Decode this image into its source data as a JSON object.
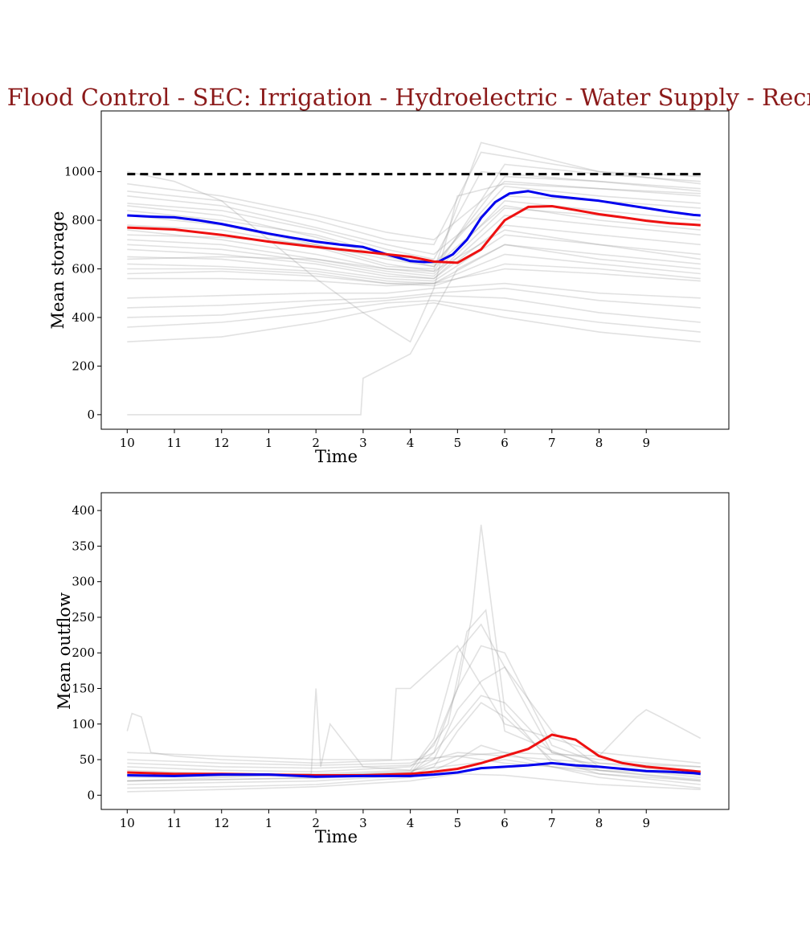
{
  "figure": {
    "title": "MAIN: Flood Control - SEC: Irrigation - Hydroelectric - Water Supply - Recreation",
    "title_color": "#8b1a1a"
  },
  "colors": {
    "background_traces": "#9a9a9a",
    "blue_series": "#0000ee",
    "red_series": "#ee1111",
    "capacity_line": "#000000"
  },
  "chart_data": [
    {
      "type": "line",
      "xlabel": "Time",
      "ylabel": "Mean storage",
      "categories": [
        "10",
        "11",
        "12",
        "1",
        "2",
        "3",
        "4",
        "5",
        "6",
        "7",
        "8",
        "9"
      ],
      "xlim": [
        -0.55,
        12.75
      ],
      "ylim": [
        -60,
        1250
      ],
      "yticks": [
        0,
        200,
        400,
        600,
        800,
        1000
      ],
      "capacity": {
        "value": 990,
        "x": [
          0,
          12.15
        ]
      },
      "series": [
        {
          "role": "blue",
          "x": [
            0,
            0.5,
            1,
            1.5,
            2,
            2.5,
            3,
            3.5,
            4,
            4.5,
            5,
            5.5,
            6,
            6.3,
            6.6,
            6.9,
            7.2,
            7.5,
            7.8,
            8.1,
            8.5,
            9,
            9.5,
            10,
            10.5,
            11,
            11.5,
            12,
            12.15
          ],
          "y": [
            820,
            815,
            812,
            800,
            785,
            765,
            745,
            728,
            712,
            700,
            690,
            660,
            632,
            628,
            630,
            660,
            720,
            810,
            875,
            910,
            920,
            900,
            890,
            880,
            865,
            850,
            835,
            822,
            820
          ]
        },
        {
          "role": "red",
          "x": [
            0,
            1,
            2,
            3,
            4,
            5,
            6,
            6.5,
            7,
            7.5,
            8,
            8.5,
            9,
            9.5,
            10,
            10.5,
            11,
            11.5,
            12,
            12.15
          ],
          "y": [
            770,
            762,
            740,
            712,
            690,
            670,
            650,
            630,
            625,
            680,
            800,
            855,
            858,
            842,
            825,
            812,
            798,
            788,
            782,
            780
          ]
        }
      ],
      "background_traces": [
        {
          "x": [
            0,
            2,
            4,
            5.5,
            6.5,
            8,
            10,
            12.15
          ],
          "y": [
            950,
            900,
            820,
            750,
            720,
            960,
            930,
            910
          ]
        },
        {
          "x": [
            0,
            2,
            4,
            5.5,
            6.5,
            8,
            10,
            12.15
          ],
          "y": [
            900,
            860,
            770,
            700,
            660,
            900,
            880,
            850
          ]
        },
        {
          "x": [
            0,
            2,
            4,
            5.5,
            6.5,
            8,
            10,
            12.15
          ],
          "y": [
            860,
            820,
            730,
            650,
            610,
            980,
            960,
            930
          ]
        },
        {
          "x": [
            0,
            2,
            4,
            5.5,
            6.5,
            8,
            10,
            12.15
          ],
          "y": [
            820,
            780,
            700,
            620,
            590,
            1030,
            990,
            960
          ]
        },
        {
          "x": [
            0,
            2,
            4,
            5.5,
            6.5,
            7.5,
            10,
            12.15
          ],
          "y": [
            780,
            760,
            690,
            610,
            600,
            1120,
            1000,
            980
          ]
        },
        {
          "x": [
            0,
            2,
            4,
            5.5,
            6.5,
            8,
            10,
            12.15
          ],
          "y": [
            760,
            720,
            660,
            600,
            580,
            880,
            840,
            800
          ]
        },
        {
          "x": [
            0,
            2,
            4,
            5.5,
            6.5,
            8,
            10,
            12.15
          ],
          "y": [
            720,
            700,
            640,
            590,
            570,
            850,
            820,
            780
          ]
        },
        {
          "x": [
            0,
            2,
            4,
            5.5,
            6.5,
            8,
            10,
            12.15
          ],
          "y": [
            700,
            680,
            630,
            580,
            560,
            820,
            780,
            740
          ]
        },
        {
          "x": [
            0,
            2,
            4,
            5.5,
            6.5,
            8,
            10,
            12.15
          ],
          "y": [
            680,
            660,
            620,
            570,
            560,
            780,
            740,
            700
          ]
        },
        {
          "x": [
            0,
            2,
            4,
            5.5,
            6.5,
            8,
            10,
            12.15
          ],
          "y": [
            650,
            640,
            600,
            560,
            550,
            740,
            700,
            660
          ]
        },
        {
          "x": [
            0,
            2,
            4,
            5.5,
            6.5,
            8,
            10,
            12.15
          ],
          "y": [
            620,
            610,
            590,
            550,
            540,
            700,
            660,
            620
          ]
        },
        {
          "x": [
            0,
            2,
            4,
            5.5,
            6.5,
            8,
            10,
            12.15
          ],
          "y": [
            600,
            600,
            580,
            540,
            540,
            660,
            620,
            580
          ]
        },
        {
          "x": [
            0,
            2,
            4,
            5.5,
            6.5,
            8,
            10,
            12.15
          ],
          "y": [
            580,
            590,
            570,
            540,
            530,
            620,
            600,
            560
          ]
        },
        {
          "x": [
            0,
            2,
            4,
            5.5,
            6.5,
            8,
            10,
            12.15
          ],
          "y": [
            560,
            560,
            550,
            530,
            540,
            600,
            580,
            550
          ]
        },
        {
          "x": [
            0,
            2,
            4,
            5.5,
            6.5,
            8,
            10,
            12.15
          ],
          "y": [
            480,
            490,
            500,
            500,
            520,
            540,
            500,
            480
          ]
        },
        {
          "x": [
            0,
            2,
            4,
            5.5,
            6.5,
            8,
            10,
            12.15
          ],
          "y": [
            440,
            450,
            470,
            480,
            500,
            520,
            470,
            440
          ]
        },
        {
          "x": [
            0,
            2,
            4,
            5.5,
            6.5,
            8,
            10,
            12.15
          ],
          "y": [
            400,
            410,
            450,
            470,
            490,
            480,
            420,
            380
          ]
        },
        {
          "x": [
            0,
            2,
            4,
            5.5,
            6.5,
            8,
            10,
            12.15
          ],
          "y": [
            360,
            380,
            420,
            460,
            470,
            430,
            380,
            340
          ]
        },
        {
          "x": [
            0,
            2,
            4,
            5.5,
            6.5,
            8,
            10,
            12.15
          ],
          "y": [
            300,
            320,
            380,
            440,
            460,
            400,
            340,
            300
          ]
        },
        {
          "x": [
            0,
            1,
            2,
            3,
            4,
            5,
            6,
            6.5,
            7,
            8,
            10,
            12.15
          ],
          "y": [
            1000,
            960,
            880,
            720,
            560,
            420,
            300,
            520,
            900,
            950,
            930,
            900
          ]
        },
        {
          "x": [
            0,
            2,
            4,
            5.5,
            6.5,
            7.5,
            10,
            12.15
          ],
          "y": [
            920,
            880,
            800,
            720,
            700,
            1080,
            1000,
            950
          ]
        },
        {
          "x": [
            0,
            2,
            4,
            5.5,
            6.5,
            7.5,
            10,
            12.15
          ],
          "y": [
            870,
            840,
            760,
            680,
            640,
            1000,
            960,
            920
          ]
        },
        {
          "x": [
            0,
            2,
            4,
            5.5,
            6.5,
            8,
            10,
            12.15
          ],
          "y": [
            840,
            800,
            740,
            660,
            620,
            940,
            900,
            870
          ]
        },
        {
          "x": [
            0,
            2,
            4,
            5.5,
            6.5,
            8,
            10,
            12.15
          ],
          "y": [
            640,
            650,
            640,
            600,
            590,
            760,
            700,
            640
          ]
        },
        {
          "x": [
            0,
            2,
            4,
            5.5,
            6.5,
            8,
            10,
            12.15
          ],
          "y": [
            740,
            730,
            700,
            640,
            610,
            860,
            800,
            760
          ]
        },
        {
          "x": [
            0,
            4.95,
            5,
            6,
            7,
            8,
            10,
            12.15
          ],
          "y": [
            0,
            0,
            150,
            250,
            600,
            700,
            640,
            600
          ]
        }
      ]
    },
    {
      "type": "line",
      "xlabel": "Time",
      "ylabel": "Mean outflow",
      "categories": [
        "10",
        "11",
        "12",
        "1",
        "2",
        "3",
        "4",
        "5",
        "6",
        "7",
        "8",
        "9"
      ],
      "xlim": [
        -0.55,
        12.75
      ],
      "ylim": [
        -20,
        425
      ],
      "yticks": [
        0,
        50,
        100,
        150,
        200,
        250,
        300,
        350,
        400
      ],
      "series": [
        {
          "role": "red",
          "x": [
            0,
            1,
            2,
            3,
            4,
            5,
            6,
            6.5,
            7,
            7.5,
            8,
            8.5,
            9,
            9.5,
            10,
            10.5,
            11,
            11.5,
            12,
            12.15
          ],
          "y": [
            32,
            30,
            30,
            29,
            28,
            28,
            30,
            33,
            37,
            45,
            55,
            65,
            85,
            78,
            55,
            45,
            40,
            37,
            34,
            33
          ]
        },
        {
          "role": "blue",
          "x": [
            0,
            1,
            2,
            3,
            4,
            5,
            6,
            6.5,
            7,
            7.5,
            8,
            8.5,
            9,
            9.5,
            10,
            10.5,
            11,
            11.5,
            12,
            12.15
          ],
          "y": [
            28,
            27,
            29,
            29,
            26,
            27,
            27,
            29,
            32,
            38,
            40,
            42,
            45,
            42,
            40,
            37,
            34,
            33,
            31,
            30
          ]
        }
      ],
      "background_traces": [
        {
          "x": [
            0,
            2,
            4,
            6,
            6.5,
            7,
            7.3,
            7.5,
            8,
            9,
            10,
            12.15
          ],
          "y": [
            20,
            22,
            25,
            30,
            60,
            150,
            250,
            380,
            120,
            45,
            35,
            20
          ]
        },
        {
          "x": [
            0,
            2,
            4,
            6,
            6.5,
            7,
            7.5,
            8,
            9,
            10,
            12.15
          ],
          "y": [
            30,
            28,
            30,
            35,
            80,
            200,
            240,
            180,
            60,
            40,
            25
          ]
        },
        {
          "x": [
            0,
            2,
            4,
            6,
            6.5,
            7,
            7.5,
            8,
            9,
            10,
            12.15
          ],
          "y": [
            40,
            35,
            33,
            40,
            70,
            150,
            210,
            200,
            70,
            45,
            30
          ]
        },
        {
          "x": [
            0,
            2,
            4,
            6,
            6.5,
            7,
            7.5,
            8,
            9,
            10,
            12.15
          ],
          "y": [
            25,
            27,
            28,
            32,
            50,
            120,
            160,
            180,
            90,
            40,
            28
          ]
        },
        {
          "x": [
            0,
            2,
            4,
            6,
            6.5,
            7,
            7.5,
            8,
            9,
            10,
            12.15
          ],
          "y": [
            50,
            45,
            42,
            45,
            60,
            100,
            140,
            130,
            60,
            50,
            40
          ]
        },
        {
          "x": [
            0,
            2,
            4,
            5.6,
            5.7,
            6,
            6.5,
            7,
            8,
            10,
            12.15
          ],
          "y": [
            60,
            55,
            50,
            50,
            150,
            150,
            180,
            210,
            100,
            60,
            45
          ]
        },
        {
          "x": [
            0,
            0.1,
            0.3,
            0.5,
            1,
            2,
            4,
            6,
            8,
            10,
            10.8,
            11,
            11.3,
            12.15
          ],
          "y": [
            90,
            115,
            110,
            60,
            55,
            50,
            45,
            50,
            60,
            55,
            110,
            120,
            110,
            80
          ]
        },
        {
          "x": [
            0,
            2,
            3.9,
            4,
            4.1,
            4.3,
            5,
            6,
            8,
            10,
            12.15
          ],
          "y": [
            20,
            25,
            30,
            150,
            40,
            100,
            40,
            35,
            50,
            30,
            20
          ]
        },
        {
          "x": [
            0,
            2,
            4,
            6,
            6.5,
            7,
            7.5,
            8,
            9,
            10,
            12.15
          ],
          "y": [
            10,
            12,
            15,
            25,
            35,
            50,
            70,
            60,
            40,
            25,
            10
          ]
        },
        {
          "x": [
            0,
            2,
            4,
            6,
            6.5,
            7,
            7.5,
            8,
            9,
            10,
            12.15
          ],
          "y": [
            15,
            18,
            20,
            28,
            40,
            90,
            130,
            110,
            50,
            30,
            15
          ]
        },
        {
          "x": [
            0,
            2,
            4,
            6,
            7,
            8,
            10,
            12.15
          ],
          "y": [
            35,
            30,
            28,
            33,
            55,
            45,
            35,
            30
          ]
        },
        {
          "x": [
            0,
            2,
            4,
            6,
            7,
            8,
            10,
            12.15
          ],
          "y": [
            45,
            40,
            38,
            42,
            60,
            55,
            45,
            40
          ]
        },
        {
          "x": [
            0,
            2,
            4,
            6,
            6.8,
            7.2,
            7.6,
            8,
            10,
            12.15
          ],
          "y": [
            20,
            22,
            24,
            30,
            100,
            230,
            260,
            90,
            35,
            22
          ]
        },
        {
          "x": [
            0,
            2,
            4,
            6,
            7,
            8,
            10,
            12.15
          ],
          "y": [
            5,
            8,
            12,
            20,
            30,
            28,
            15,
            8
          ]
        }
      ]
    }
  ]
}
